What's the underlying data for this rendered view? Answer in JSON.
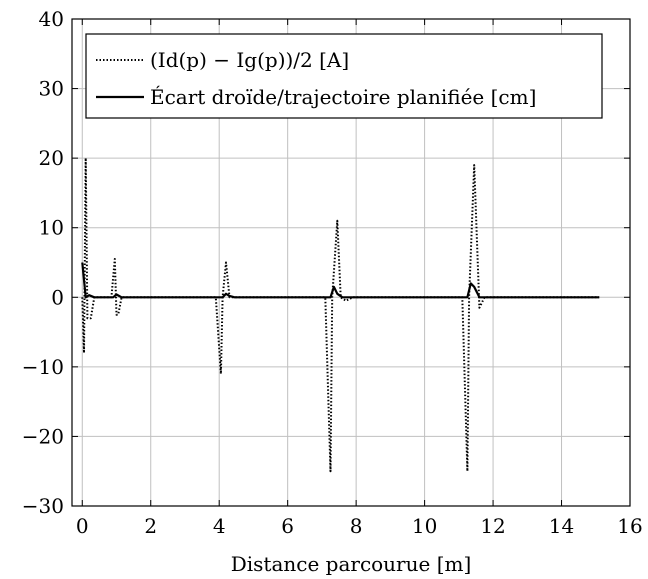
{
  "chart_data": {
    "type": "line",
    "title": "",
    "xlabel": "Distance parcourue [m]",
    "ylabel": "",
    "xlim": [
      -0.3,
      16
    ],
    "ylim": [
      -30,
      40
    ],
    "xticks": [
      0,
      2,
      4,
      6,
      8,
      10,
      12,
      14,
      16
    ],
    "yticks": [
      -30,
      -20,
      -10,
      0,
      10,
      20,
      30,
      40
    ],
    "xtick_labels": [
      "0",
      "2",
      "4",
      "6",
      "8",
      "10",
      "12",
      "14",
      "16"
    ],
    "ytick_labels": [
      "−30",
      "−20",
      "−10",
      "0",
      "10",
      "20",
      "30",
      "40"
    ],
    "grid": true,
    "legend_position": "top-left",
    "series": [
      {
        "name": "(Id(p) − Ig(p))/2 [A]",
        "style": "dotted",
        "color": "#000000",
        "x": [
          0.0,
          0.05,
          0.1,
          0.15,
          0.25,
          0.35,
          0.5,
          0.85,
          0.95,
          1.0,
          1.05,
          1.15,
          1.25,
          1.4,
          3.9,
          4.05,
          4.1,
          4.2,
          4.3,
          4.4,
          4.6,
          7.1,
          7.25,
          7.3,
          7.45,
          7.55,
          7.7,
          7.9,
          11.1,
          11.25,
          11.3,
          11.45,
          11.6,
          11.75,
          11.9,
          15.1
        ],
        "y": [
          0,
          -8,
          20,
          -3,
          -3,
          0,
          0,
          0,
          5.5,
          -2.5,
          -2.5,
          0,
          0,
          0,
          0,
          -11,
          0,
          5,
          0,
          0,
          0,
          0,
          -25,
          0,
          11,
          0,
          -0.5,
          0,
          0,
          -25,
          0,
          19,
          -1.5,
          0,
          0,
          0
        ]
      },
      {
        "name": "Écart droïde/trajectoire planifiée [cm]",
        "style": "solid",
        "color": "#000000",
        "x": [
          0.0,
          0.1,
          0.2,
          0.35,
          0.9,
          1.0,
          1.15,
          1.4,
          4.1,
          4.2,
          4.3,
          4.45,
          7.25,
          7.35,
          7.45,
          7.6,
          11.25,
          11.35,
          11.45,
          11.6,
          15.1
        ],
        "y": [
          5,
          0,
          0.3,
          0,
          0,
          0.4,
          0,
          0,
          0,
          0.5,
          0.2,
          0,
          0,
          1.5,
          0.5,
          0,
          0,
          2,
          1.5,
          0,
          0
        ]
      }
    ]
  }
}
